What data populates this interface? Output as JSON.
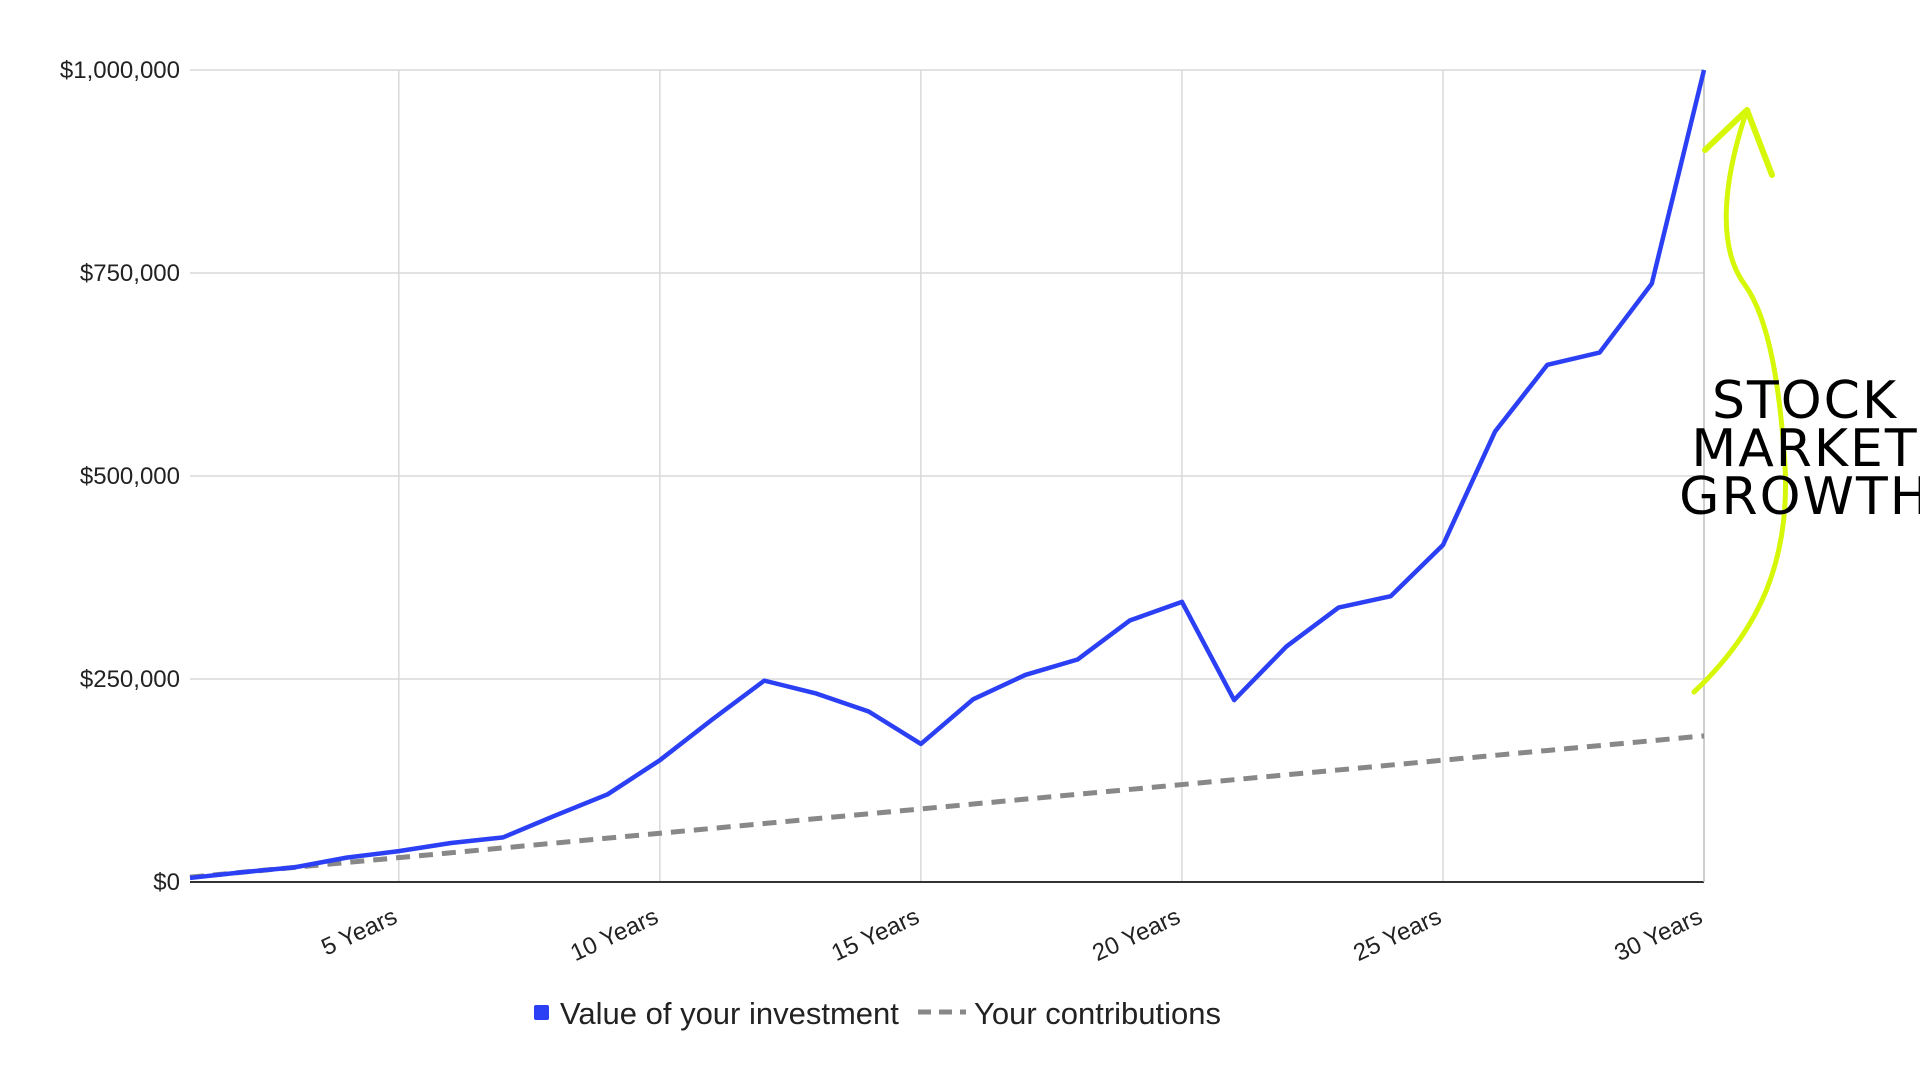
{
  "chart_data": {
    "type": "line",
    "title": "",
    "xlabel": "",
    "ylabel": "",
    "x": [
      1,
      2,
      3,
      4,
      5,
      6,
      7,
      8,
      9,
      10,
      11,
      12,
      13,
      14,
      15,
      16,
      17,
      18,
      19,
      20,
      21,
      22,
      23,
      24,
      25,
      26,
      27,
      28,
      29,
      30
    ],
    "xlim": [
      1,
      30
    ],
    "x_ticks": [
      {
        "x": 5,
        "label": "5 Years"
      },
      {
        "x": 10,
        "label": "10 Years"
      },
      {
        "x": 15,
        "label": "15 Years"
      },
      {
        "x": 20,
        "label": "20 Years"
      },
      {
        "x": 25,
        "label": "25 Years"
      },
      {
        "x": 30,
        "label": "30 Years"
      }
    ],
    "ylim": [
      0,
      1000000
    ],
    "y_ticks": [
      {
        "y": 0,
        "label": "$0"
      },
      {
        "y": 250000,
        "label": "$250,000"
      },
      {
        "y": 500000,
        "label": "$500,000"
      },
      {
        "y": 750000,
        "label": "$750,000"
      },
      {
        "y": 1000000,
        "label": "$1,000,000"
      }
    ],
    "grid": true,
    "legend_position": "bottom",
    "series": [
      {
        "name": "Value of your investment",
        "color": "#2b3ff5",
        "style": "solid",
        "values": [
          5000,
          12000,
          18000,
          30000,
          38000,
          48000,
          55000,
          82000,
          108000,
          150000,
          200000,
          248000,
          232000,
          210000,
          170000,
          225000,
          255000,
          274000,
          322000,
          345000,
          224000,
          290000,
          338000,
          352000,
          415000,
          555000,
          637000,
          652000,
          737000,
          1000000
        ]
      },
      {
        "name": "Your contributions",
        "color": "#888888",
        "style": "dashed",
        "values": [
          6000,
          12000,
          18000,
          24000,
          30000,
          36000,
          42000,
          48000,
          54000,
          60000,
          66000,
          72000,
          78000,
          84000,
          90000,
          96000,
          102000,
          108000,
          114000,
          120000,
          126000,
          132000,
          138000,
          144000,
          150000,
          156000,
          162000,
          168000,
          174000,
          180000
        ]
      }
    ],
    "annotation": {
      "lines": [
        "STOCK",
        "MARKET",
        "GROWTH"
      ],
      "arrow_color": "#d7f708"
    }
  }
}
